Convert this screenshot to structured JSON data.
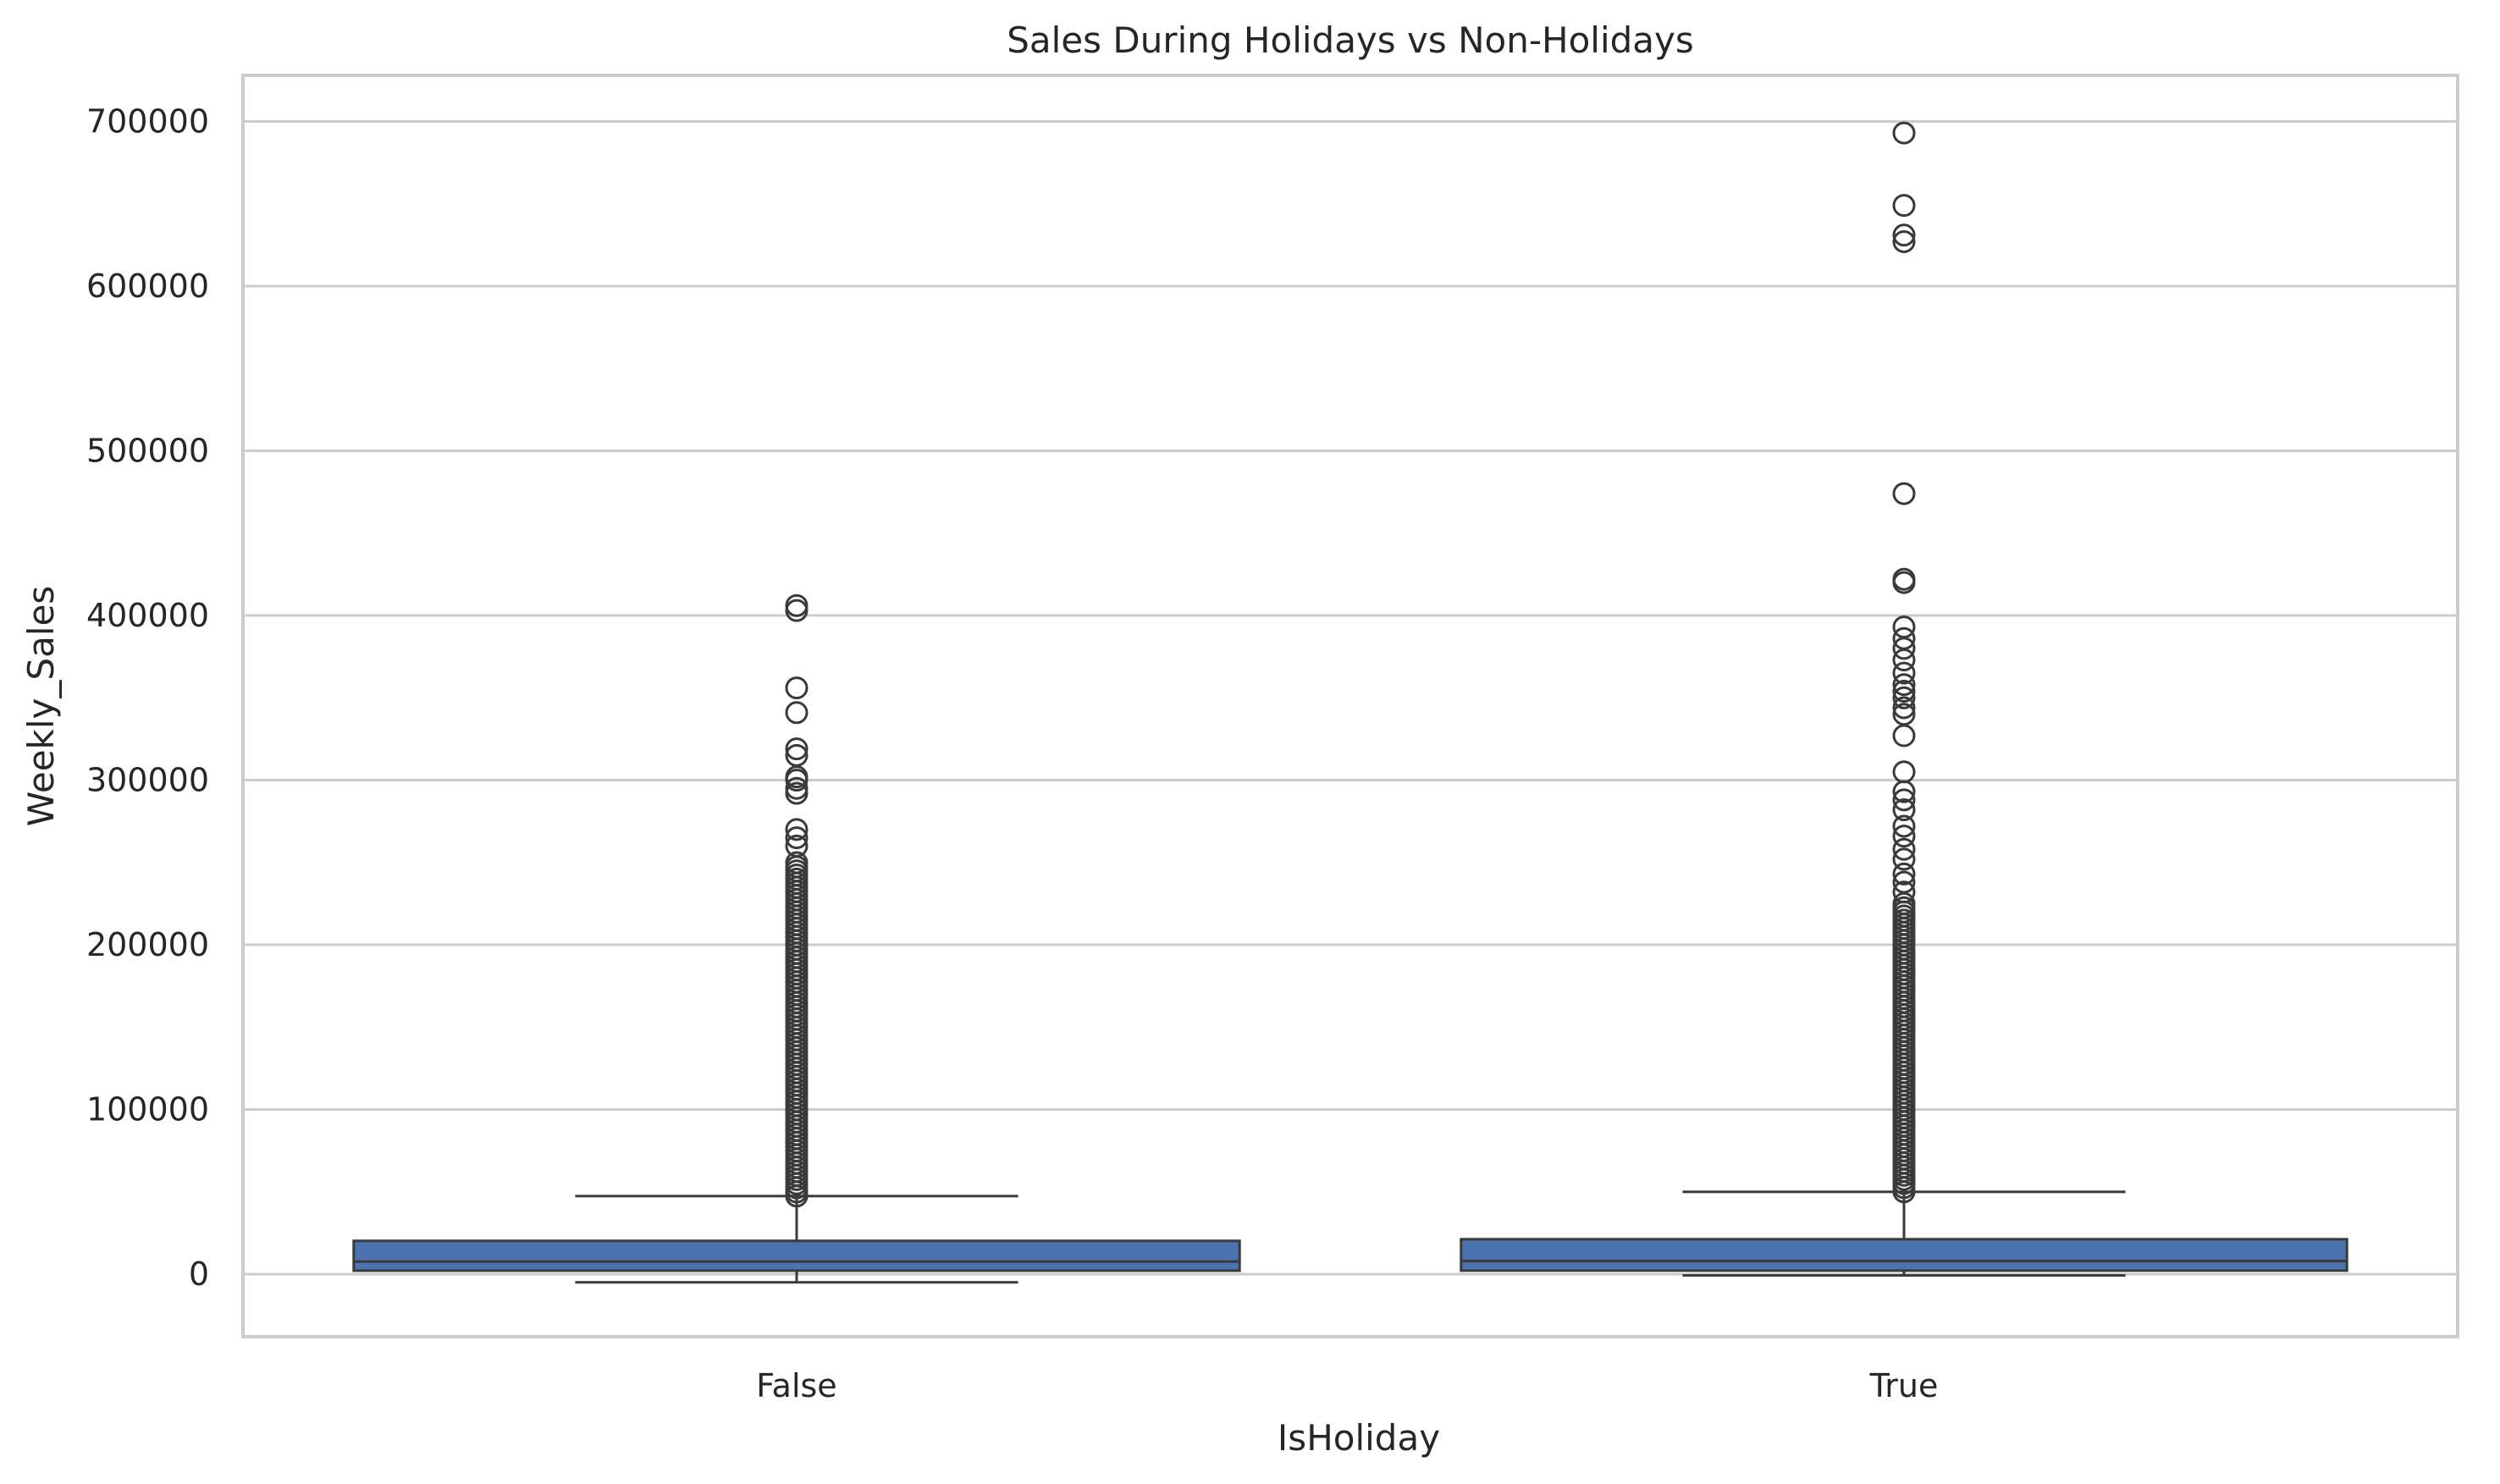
{
  "chart_data": {
    "type": "box",
    "title": "Sales During Holidays vs Non-Holidays",
    "xlabel": "IsHoliday",
    "ylabel": "Weekly_Sales",
    "ylim": [
      -38000,
      728000
    ],
    "yticks": [
      0,
      100000,
      200000,
      300000,
      400000,
      500000,
      600000,
      700000
    ],
    "ytick_labels": [
      "0",
      "100000",
      "200000",
      "300000",
      "400000",
      "500000",
      "600000",
      "700000"
    ],
    "grid": true,
    "box_color": "#4c72b0",
    "categories": [
      "False",
      "True"
    ],
    "boxes": [
      {
        "category": "False",
        "whisker_low": -4989,
        "q1": 2080,
        "median": 7612,
        "q3": 20205,
        "whisker_high": 47400,
        "outliers_dense_range": [
          47400,
          250000
        ],
        "outliers": [
          260000,
          265000,
          270000,
          292000,
          295000,
          300000,
          302000,
          315000,
          319000,
          341000,
          356000,
          403000,
          406000
        ]
      },
      {
        "category": "True",
        "whisker_low": -798,
        "q1": 2118,
        "median": 7948,
        "q3": 21198,
        "whisker_high": 50000,
        "outliers_dense_range": [
          50000,
          225000
        ],
        "outliers": [
          232000,
          238000,
          243000,
          252000,
          258000,
          266000,
          272000,
          282000,
          288000,
          293000,
          305000,
          327000,
          340000,
          344000,
          350000,
          354000,
          358000,
          365000,
          373000,
          380000,
          386000,
          393000,
          420000,
          422000,
          474000,
          627000,
          631000,
          649000,
          693000
        ]
      }
    ]
  }
}
